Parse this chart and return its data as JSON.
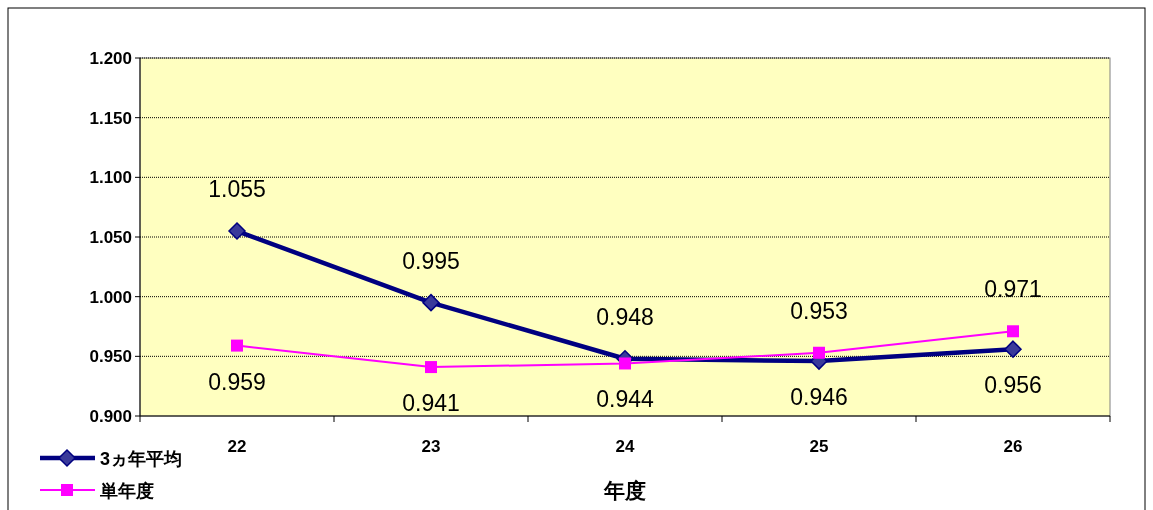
{
  "chart_data": {
    "type": "line",
    "xlabel": "年度",
    "categories": [
      "22",
      "23",
      "24",
      "25",
      "26"
    ],
    "series": [
      {
        "name": "3ヵ年平均",
        "color": "#000080",
        "marker": "diamond",
        "values": [
          1.055,
          0.995,
          0.948,
          0.946,
          0.956
        ]
      },
      {
        "name": "単年度",
        "color": "#ff00ff",
        "marker": "square",
        "values": [
          0.959,
          0.941,
          0.944,
          0.953,
          0.971
        ]
      }
    ],
    "ylim": [
      0.9,
      1.2
    ],
    "yticks": [
      {
        "value": 0.9,
        "label": "0.900"
      },
      {
        "value": 0.95,
        "label": "0.950"
      },
      {
        "value": 1.0,
        "label": "1.000"
      },
      {
        "value": 1.05,
        "label": "1.050"
      },
      {
        "value": 1.1,
        "label": "1.100"
      },
      {
        "value": 1.15,
        "label": "1.150"
      },
      {
        "value": 1.2,
        "label": "1.200"
      }
    ],
    "grid": "y",
    "legend": "bottom left",
    "data_labels": true
  }
}
